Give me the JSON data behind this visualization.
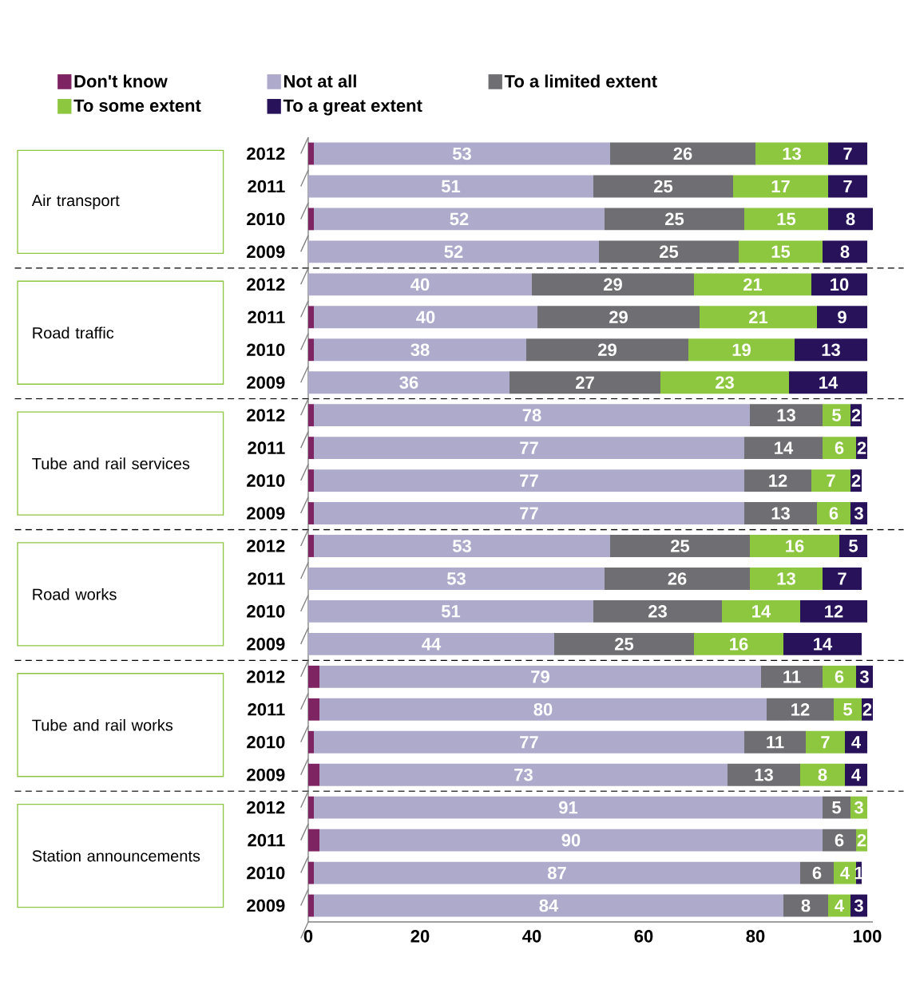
{
  "chart_data": {
    "type": "bar",
    "orientation": "horizontal",
    "stacked": true,
    "legend": "top",
    "categories": [
      "2012",
      "2011",
      "2010",
      "2009",
      "2012",
      "2011",
      "2010",
      "2009",
      "2012",
      "2011",
      "2010",
      "2009",
      "2012",
      "2011",
      "2010",
      "2009",
      "2012",
      "2011",
      "2010",
      "2009",
      "2012",
      "2011",
      "2010",
      "2009"
    ],
    "annotations": [
      "Air transport",
      "Road traffic",
      "Tube and rail services",
      "Road works",
      "Tube and rail works",
      "Station announcements"
    ],
    "xlim": [
      0,
      101
    ],
    "xticks": [
      0,
      20,
      40,
      60,
      80,
      100
    ],
    "series": [
      {
        "name": "Don't know",
        "color": "#7f2463",
        "data_labels": false,
        "values": [
          1,
          0,
          1,
          0,
          0,
          1,
          1,
          0,
          1,
          1,
          1,
          1,
          1,
          0,
          0,
          0,
          2,
          2,
          1,
          2,
          1,
          2,
          1,
          1
        ]
      },
      {
        "name": "Not at all",
        "color": "#aeaacb",
        "data_labels": true,
        "values": [
          53,
          51,
          52,
          52,
          40,
          40,
          38,
          36,
          78,
          77,
          77,
          77,
          53,
          53,
          51,
          44,
          79,
          80,
          77,
          73,
          91,
          90,
          87,
          84
        ]
      },
      {
        "name": "To a limited extent",
        "color": "#6f6e73",
        "data_labels": true,
        "values": [
          26,
          25,
          25,
          25,
          29,
          29,
          29,
          27,
          13,
          14,
          12,
          13,
          25,
          26,
          23,
          25,
          11,
          12,
          11,
          13,
          5,
          6,
          6,
          8
        ]
      },
      {
        "name": "To some extent",
        "color": "#8dc63f",
        "data_labels": true,
        "values": [
          13,
          17,
          15,
          15,
          21,
          21,
          19,
          23,
          5,
          6,
          7,
          6,
          16,
          13,
          14,
          16,
          6,
          5,
          7,
          8,
          3,
          2,
          4,
          4
        ]
      },
      {
        "name": "To a great extent",
        "color": "#28135a",
        "data_labels": true,
        "values": [
          7,
          7,
          8,
          8,
          10,
          9,
          13,
          14,
          2,
          2,
          2,
          3,
          5,
          7,
          12,
          14,
          3,
          2,
          4,
          4,
          null,
          null,
          1,
          3
        ]
      }
    ]
  }
}
